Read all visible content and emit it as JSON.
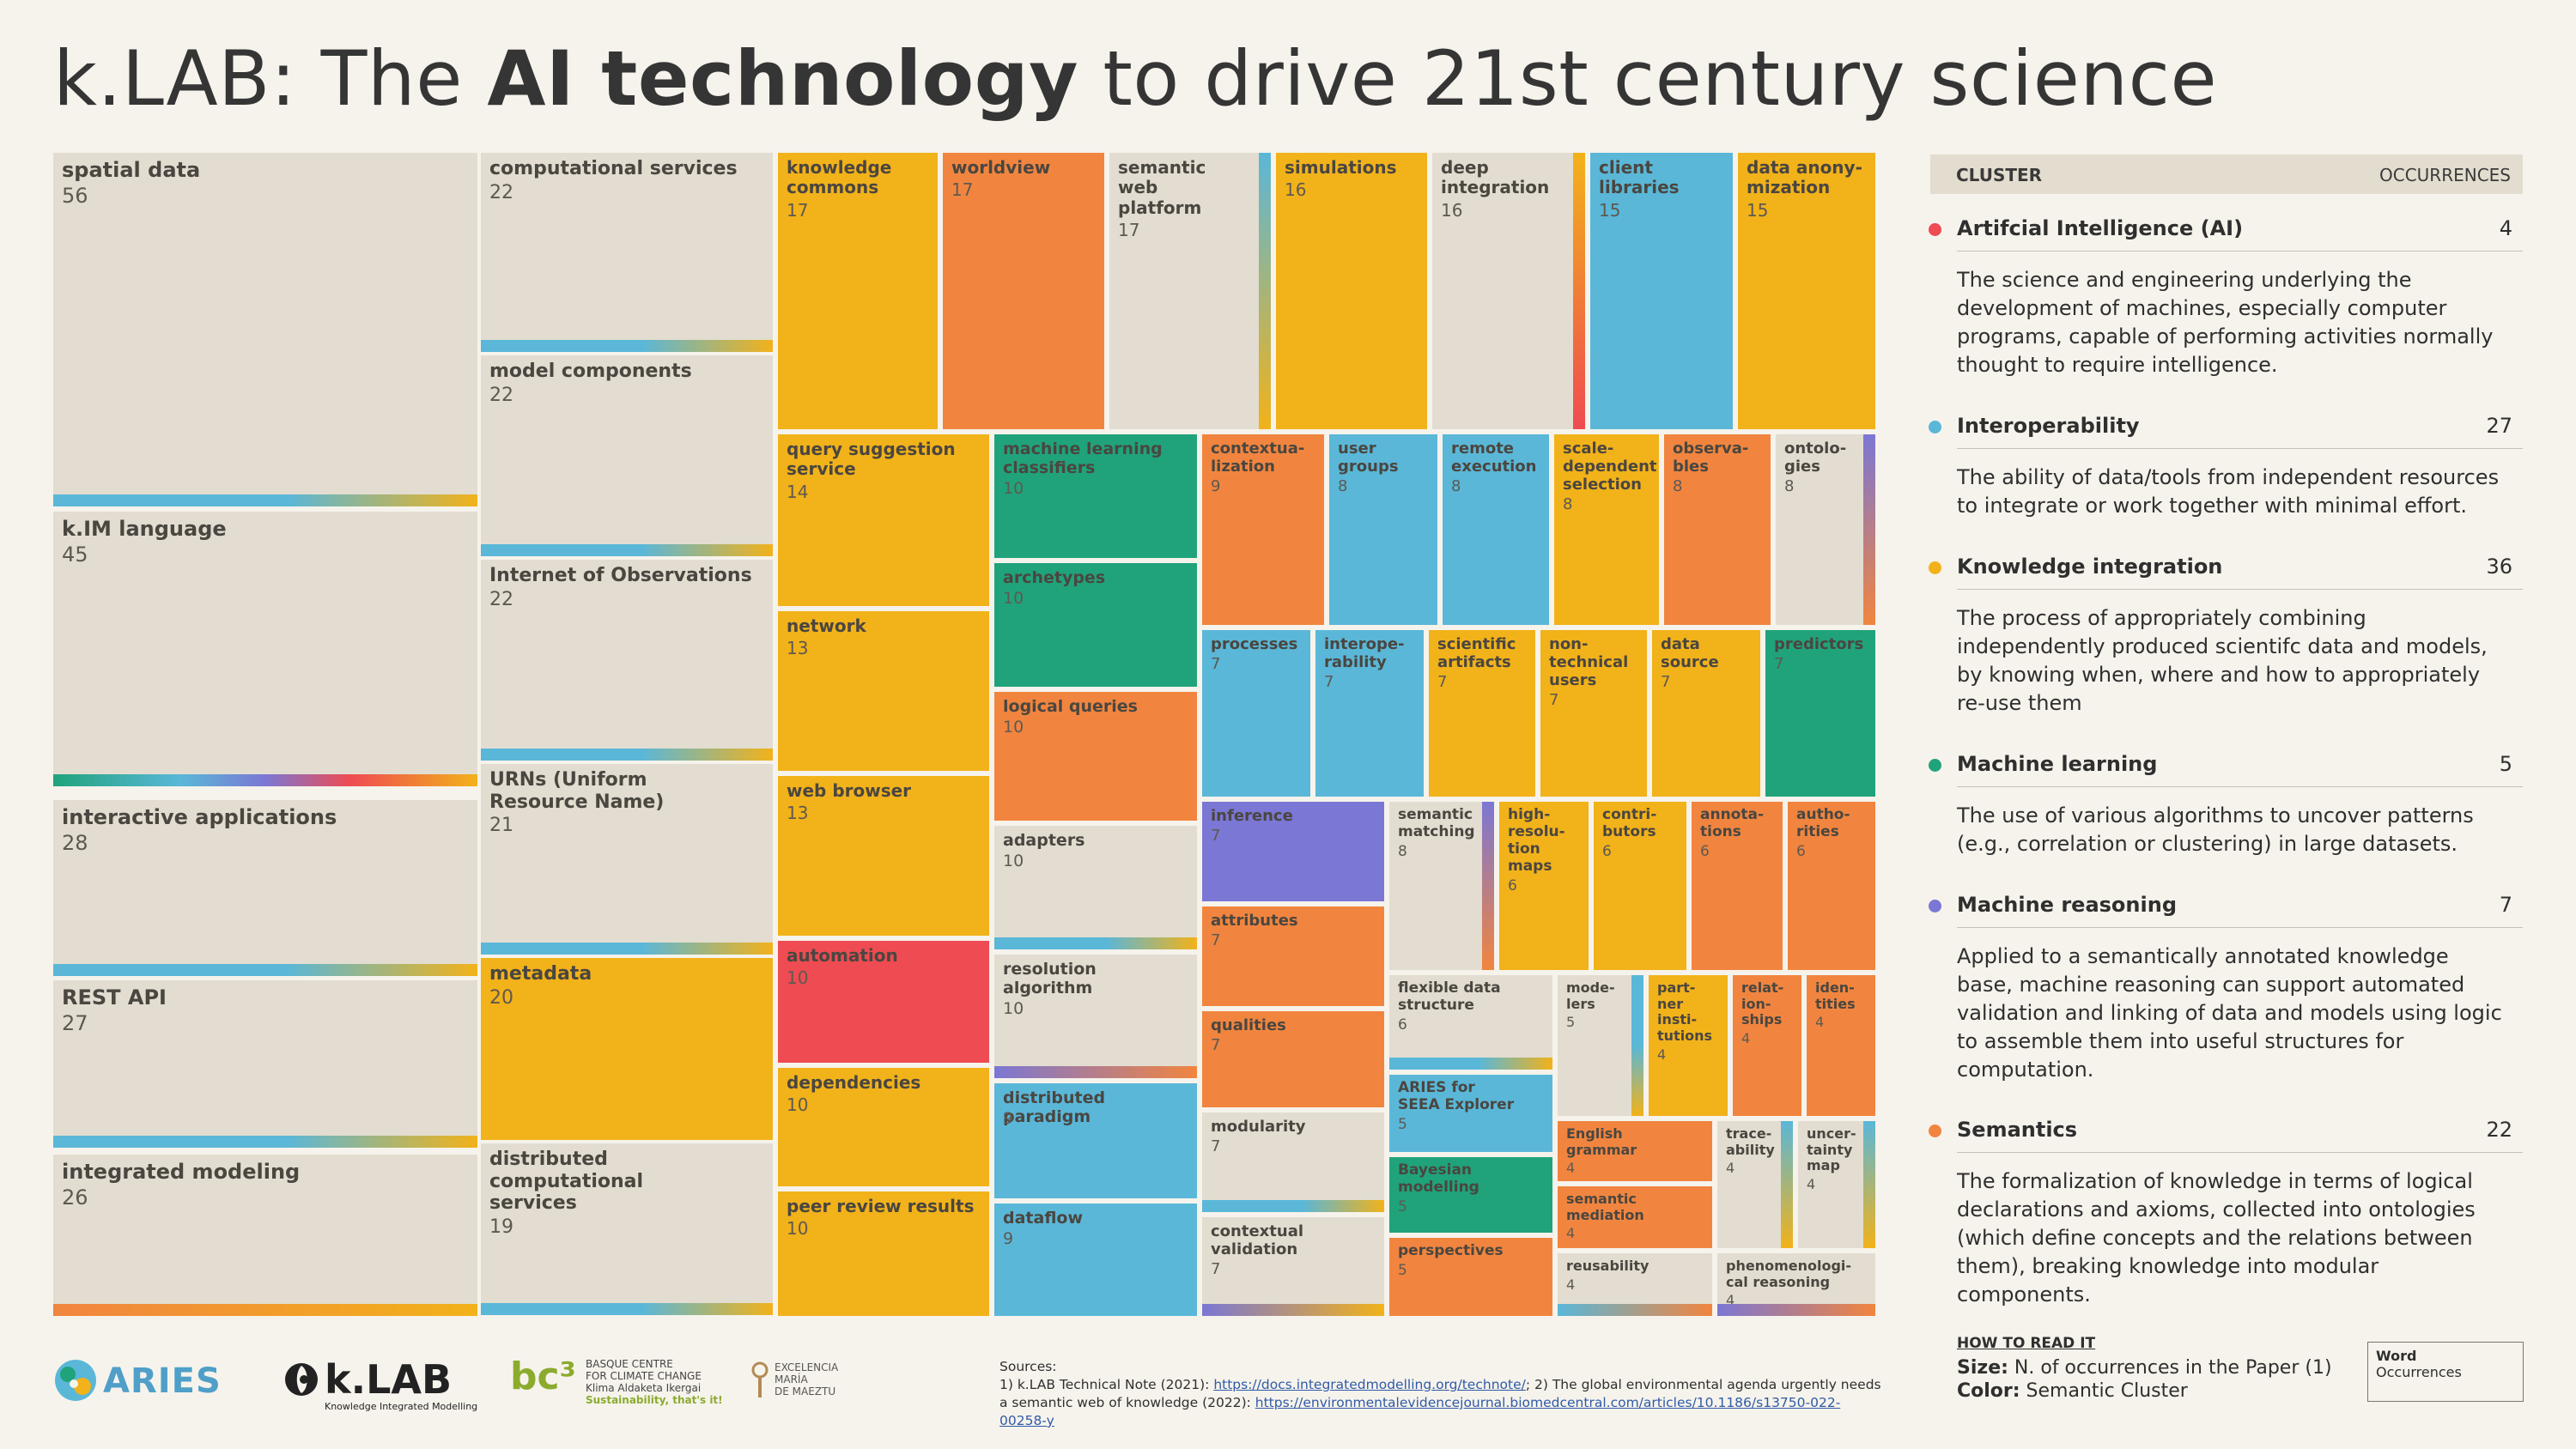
{
  "title": {
    "pre": "k.LAB: The ",
    "bold": "AI technology",
    "post": " to drive 21st century science"
  },
  "colors": {
    "AI": "#ef4b52",
    "Interoperability": "#5ab7d8",
    "Knowledge integration": "#f2b21a",
    "Machine learning": "#20a37b",
    "Machine reasoning": "#7b77d4",
    "Semantics": "#f1853f",
    "neutral": "#e2ddd0"
  },
  "legend": {
    "header_cluster": "CLUSTER",
    "header_occurrences": "OCCURRENCES",
    "items": [
      {
        "name": "Artifcial Intelligence (AI)",
        "count": "4",
        "color": "#ef4b52",
        "desc": "The science and engineering underlying the development of machines, especially computer programs, capable of performing activities normally thought to require intelligence."
      },
      {
        "name": "Interoperability",
        "count": "27",
        "color": "#5ab7d8",
        "desc": "The ability of data/tools from independent resources to integrate or work together with minimal effort."
      },
      {
        "name": "Knowledge integration",
        "count": "36",
        "color": "#f2b21a",
        "desc": "The process of appropriately combining independently produced scientifc data and models, by knowing when, where and how to appropriately re-use them"
      },
      {
        "name": "Machine learning",
        "count": "5",
        "color": "#20a37b",
        "desc": "The use of various algorithms to uncover patterns (e.g., correlation or clustering) in large datasets."
      },
      {
        "name": "Machine reasoning",
        "count": "7",
        "color": "#7b77d4",
        "desc": "Applied to a semantically annotated knowledge base, machine reasoning can support automated validation and linking of data and models using logic to assemble them into useful structures for computation."
      },
      {
        "name": "Semantics",
        "count": "22",
        "color": "#f1853f",
        "desc": "The formalization of knowledge in terms of logical declarations and axioms, collected into ontologies (which define concepts and the relations between them), breaking knowledge into modular components."
      }
    ]
  },
  "how_to": {
    "heading": "HOW TO READ IT",
    "size_label": "Size:",
    "size_text": " N. of occurrences in the Paper (1)",
    "color_label": "Color:",
    "color_text": " Semantic Cluster",
    "box_word": "Word",
    "box_occ": "Occurrences"
  },
  "sources": {
    "label": "Sources:",
    "line1": "1) k.LAB Technical Note (2021): ",
    "link1": "https://docs.integratedmodelling.org/technote/",
    "line2": "; 2) The global environmental agenda urgently needs a semantic web of knowledge (2022): ",
    "link2": "https://environmentalevidencejournal.biomedcentral.com/articles/10.1186/s13750-022-00258-y"
  },
  "logos": {
    "aries": "ARIES",
    "klab": "k.LAB",
    "klab_sub": "Knowledge Integrated Modelling",
    "bc3": "bc³",
    "bc3_l1": "BASQUE CENTRE",
    "bc3_l2": "FOR CLIMATE CHANGE",
    "bc3_l3": "Klima Aldaketa Ikergai",
    "bc3_l4": "Sustainability, that's it!",
    "maeztu_l1": "EXCELENCIA",
    "maeztu_l2": "MARÍA",
    "maeztu_l3": "DE MAEZTU"
  },
  "chart_data": {
    "type": "treemap",
    "size_meaning": "N. of occurrences in the Paper (1)",
    "color_meaning": "Semantic Cluster",
    "items": [
      {
        "word": "spatial data",
        "value": 56,
        "cluster": "neutral"
      },
      {
        "word": "k.IM language",
        "value": 45,
        "cluster": "neutral"
      },
      {
        "word": "interactive applications",
        "value": 28,
        "cluster": "neutral"
      },
      {
        "word": "REST API",
        "value": 27,
        "cluster": "neutral"
      },
      {
        "word": "integrated modeling",
        "value": 26,
        "cluster": "neutral"
      },
      {
        "word": "computational services",
        "value": 22,
        "cluster": "neutral"
      },
      {
        "word": "model components",
        "value": 22,
        "cluster": "neutral"
      },
      {
        "word": "Internet of Observations",
        "value": 22,
        "cluster": "neutral"
      },
      {
        "word": "URNs (Uniform\nResource Name)",
        "value": 21,
        "cluster": "neutral"
      },
      {
        "word": "metadata",
        "value": 20,
        "cluster": "Knowledge integration"
      },
      {
        "word": "distributed\ncomputational\nservices",
        "value": 19,
        "cluster": "neutral"
      },
      {
        "word": "knowledge\ncommons",
        "value": 17,
        "cluster": "Knowledge integration"
      },
      {
        "word": "worldview",
        "value": 17,
        "cluster": "Semantics"
      },
      {
        "word": "semantic\nweb\nplatform",
        "value": 17,
        "cluster": "neutral"
      },
      {
        "word": "simulations",
        "value": 16,
        "cluster": "Knowledge integration"
      },
      {
        "word": "deep\nintegration",
        "value": 16,
        "cluster": "neutral"
      },
      {
        "word": "client\nlibraries",
        "value": 15,
        "cluster": "Interoperability"
      },
      {
        "word": "data anony-\nmization",
        "value": 15,
        "cluster": "Knowledge integration"
      },
      {
        "word": "query suggestion\nservice",
        "value": 14,
        "cluster": "Knowledge integration"
      },
      {
        "word": "network",
        "value": 13,
        "cluster": "Knowledge integration"
      },
      {
        "word": "web browser",
        "value": 13,
        "cluster": "Knowledge integration"
      },
      {
        "word": "automation",
        "value": 10,
        "cluster": "AI"
      },
      {
        "word": "dependencies",
        "value": 10,
        "cluster": "Knowledge integration"
      },
      {
        "word": "peer review results",
        "value": 10,
        "cluster": "Knowledge integration"
      },
      {
        "word": "machine learning\nclassifiers",
        "value": 10,
        "cluster": "Machine learning"
      },
      {
        "word": "archetypes",
        "value": 10,
        "cluster": "Machine learning"
      },
      {
        "word": "logical queries",
        "value": 10,
        "cluster": "Semantics"
      },
      {
        "word": "adapters",
        "value": 10,
        "cluster": "neutral"
      },
      {
        "word": "resolution\nalgorithm",
        "value": 10,
        "cluster": "neutral"
      },
      {
        "word": "distributed paradigm",
        "value": 9,
        "cluster": "Interoperability"
      },
      {
        "word": "dataflow",
        "value": 9,
        "cluster": "Interoperability"
      },
      {
        "word": "contextua-\nlization",
        "value": 9,
        "cluster": "Semantics"
      },
      {
        "word": "user\ngroups",
        "value": 8,
        "cluster": "Interoperability"
      },
      {
        "word": "remote\nexecution",
        "value": 8,
        "cluster": "Interoperability"
      },
      {
        "word": "scale-\ndependent\nselection",
        "value": 8,
        "cluster": "Knowledge integration"
      },
      {
        "word": "observa-\nbles",
        "value": 8,
        "cluster": "Semantics"
      },
      {
        "word": "ontolo-\ngies",
        "value": 8,
        "cluster": "neutral"
      },
      {
        "word": "processes",
        "value": 7,
        "cluster": "Interoperability"
      },
      {
        "word": "interope-\nrability",
        "value": 7,
        "cluster": "Interoperability"
      },
      {
        "word": "scientific\nartifacts",
        "value": 7,
        "cluster": "Knowledge integration"
      },
      {
        "word": "non-\ntechnical\nusers",
        "value": 7,
        "cluster": "Knowledge integration"
      },
      {
        "word": "data\nsource",
        "value": 7,
        "cluster": "Knowledge integration"
      },
      {
        "word": "predictors",
        "value": 7,
        "cluster": "Machine learning"
      },
      {
        "word": "inference",
        "value": 7,
        "cluster": "Machine reasoning"
      },
      {
        "word": "attributes",
        "value": 7,
        "cluster": "Semantics"
      },
      {
        "word": "qualities",
        "value": 7,
        "cluster": "Semantics"
      },
      {
        "word": "modularity",
        "value": 7,
        "cluster": "neutral"
      },
      {
        "word": "contextual\nvalidation",
        "value": 7,
        "cluster": "neutral"
      },
      {
        "word": "semantic\nmatching",
        "value": 8,
        "cluster": "neutral"
      },
      {
        "word": "high-\nresolu-\ntion\nmaps",
        "value": 6,
        "cluster": "Knowledge integration"
      },
      {
        "word": "contri-\nbutors",
        "value": 6,
        "cluster": "Knowledge integration"
      },
      {
        "word": "annota-\ntions",
        "value": 6,
        "cluster": "Semantics"
      },
      {
        "word": "autho-\nrities",
        "value": 6,
        "cluster": "Semantics"
      },
      {
        "word": "flexible data\nstructure",
        "value": 6,
        "cluster": "neutral"
      },
      {
        "word": "mode-\nlers",
        "value": 5,
        "cluster": "neutral"
      },
      {
        "word": "part-\nner\ninsti-\ntutions",
        "value": 4,
        "cluster": "Knowledge integration"
      },
      {
        "word": "relat-\nion-\nships",
        "value": 4,
        "cluster": "Semantics"
      },
      {
        "word": "iden-\ntities",
        "value": 4,
        "cluster": "Semantics"
      },
      {
        "word": "ARIES for\nSEEA Explorer",
        "value": 5,
        "cluster": "Interoperability"
      },
      {
        "word": "Bayesian\nmodelling",
        "value": 5,
        "cluster": "Machine learning"
      },
      {
        "word": "perspectives",
        "value": 5,
        "cluster": "Semantics"
      },
      {
        "word": "English\ngrammar",
        "value": 4,
        "cluster": "Semantics"
      },
      {
        "word": "semantic\nmediation",
        "value": 4,
        "cluster": "Semantics"
      },
      {
        "word": "reusability",
        "value": 4,
        "cluster": "neutral"
      },
      {
        "word": "trace-\nability",
        "value": 4,
        "cluster": "neutral"
      },
      {
        "word": "uncer-\ntainty\nmap",
        "value": 4,
        "cluster": "neutral"
      },
      {
        "word": "phenomenologi-\ncal reasoning",
        "value": 4,
        "cluster": "neutral"
      }
    ]
  }
}
